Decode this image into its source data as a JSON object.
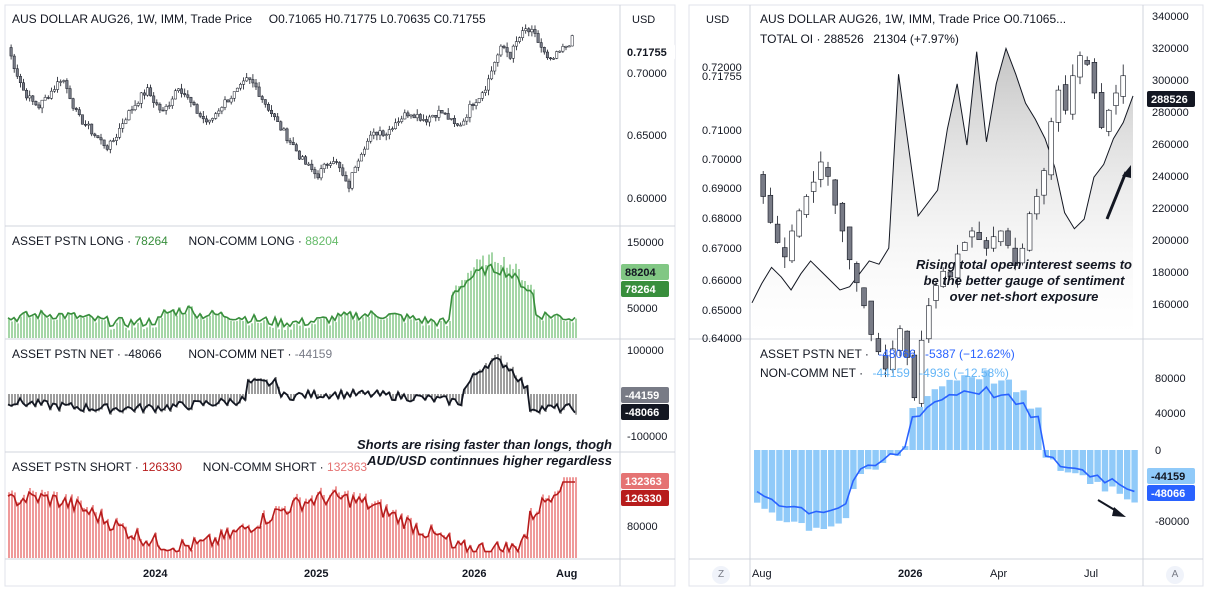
{
  "colors": {
    "bull": "#ffffff",
    "bear": "#787b86",
    "wick": "#131722",
    "long_green": "#388e3c",
    "long_bar": "#a5d6a7",
    "net_line": "#131722",
    "net_bar": "#9e9e9e",
    "short_red": "#b71c1c",
    "short_bar": "#ef9a9a",
    "net_blue_line": "#2962ff",
    "net_blue_bar": "#90caf9",
    "oi_fill": "#c9c9c9",
    "dark_label": "#131722",
    "grey_label": "#787b86",
    "text": "#131722",
    "muted": "#787b86"
  },
  "left": {
    "price": {
      "title": "AUS DOLLAR AUG26, 1W, IMM, Trade Price",
      "ohlc": "O0.71065  H0.71775  L0.70635  C0.71755",
      "currency": "USD",
      "last_label": "0.71755",
      "ticks": [
        "0.70000",
        "0.65000",
        "0.60000"
      ]
    },
    "long": {
      "title": "ASSET PSTN LONG",
      "v1": "78264",
      "title2": "NON-COMM LONG",
      "v2": "88204",
      "label_top": "88204",
      "label_bot": "78264",
      "ticks": [
        "150000",
        "50000"
      ]
    },
    "net": {
      "title": "ASSET PSTN NET",
      "v1": "-48066",
      "title2": "NON-COMM NET",
      "v2": "-44159",
      "label_top": "-44159",
      "label_bot": "-48066",
      "ticks": [
        "100000",
        "-100000"
      ]
    },
    "short": {
      "title": "ASSET PSTN SHORT",
      "v1": "126330",
      "title2": "NON-COMM SHORT",
      "v2": "132363",
      "label_top": "132363",
      "label_bot": "126330",
      "ticks": [
        "80000"
      ]
    },
    "x_ticks": [
      "2024",
      "2025",
      "2026",
      "Aug"
    ],
    "annotation": [
      "Shorts are rising faster than longs, thogh",
      "AUD/USD continnues higher regardless"
    ]
  },
  "right": {
    "price": {
      "title": "AUS DOLLAR AUG26, 1W, IMM, Trade Price  O0.71065...",
      "currency": "USD",
      "oi_title": "TOTAL OI",
      "oi_value": "288526",
      "oi_change": "21304 (+7.97%)",
      "oi_label": "288526",
      "left_ticks": [
        "0.72000",
        "0.71755",
        "0.71000",
        "0.70000",
        "0.69000",
        "0.68000",
        "0.67000",
        "0.66000",
        "0.65000",
        "0.64000"
      ],
      "right_ticks": [
        "340000",
        "320000",
        "300000",
        "280000",
        "260000",
        "240000",
        "220000",
        "200000",
        "180000",
        "160000"
      ],
      "annotation": [
        "Rising total open interest seems to",
        "be the better gauge of sentiment",
        "over net-short exposure"
      ]
    },
    "net": {
      "title": "ASSET PSTN NET",
      "v1": "-48066",
      "chg1": "-5387 (−12.62%)",
      "title2": "NON-COMM NET",
      "v2": "-44159",
      "chg2": "-4936 (−12.58%)",
      "ticks": [
        "80000",
        "40000",
        "0",
        "-80000"
      ],
      "label_top": "-44159",
      "label_bot": "-48066"
    },
    "x_ticks": [
      "Aug",
      "2026",
      "Apr",
      "Jul"
    ],
    "z_button": "Z",
    "a_button": "A"
  },
  "chart_data": [
    {
      "type": "line",
      "title": "AUS DOLLAR AUG26, 1W, IMM, Trade Price",
      "approx_weekly_close": [
        0.712,
        0.695,
        0.68,
        0.672,
        0.668,
        0.675,
        0.682,
        0.69,
        0.676,
        0.66,
        0.655,
        0.648,
        0.642,
        0.637,
        0.646,
        0.658,
        0.666,
        0.674,
        0.68,
        0.671,
        0.663,
        0.672,
        0.684,
        0.676,
        0.667,
        0.66,
        0.655,
        0.664,
        0.671,
        0.676,
        0.681,
        0.688,
        0.683,
        0.673,
        0.664,
        0.654,
        0.646,
        0.638,
        0.628,
        0.622,
        0.616,
        0.623,
        0.63,
        0.62,
        0.606,
        0.626,
        0.638,
        0.645,
        0.65,
        0.648,
        0.656,
        0.66,
        0.664,
        0.661,
        0.658,
        0.662,
        0.664,
        0.659,
        0.652,
        0.658,
        0.67,
        0.676,
        0.685,
        0.702,
        0.713,
        0.706,
        0.718,
        0.725,
        0.722,
        0.712,
        0.7,
        0.706,
        0.712,
        0.718
      ],
      "ylim": [
        0.595,
        0.73
      ],
      "last": 0.71755
    },
    {
      "type": "bar",
      "title": "TOTAL OI",
      "approx_values": [
        160000,
        172000,
        182000,
        176000,
        168000,
        178000,
        186000,
        180000,
        174000,
        168000,
        170000,
        178000,
        186000,
        184000,
        194000,
        302000,
        258000,
        214000,
        222000,
        230000,
        268000,
        296000,
        258000,
        316000,
        260000,
        296000,
        318000,
        302000,
        284000,
        274000,
        262000,
        244000,
        216000,
        206000,
        212000,
        238000,
        246000,
        262000,
        272000,
        288526
      ],
      "ylim": [
        140000,
        345000
      ]
    }
  ]
}
